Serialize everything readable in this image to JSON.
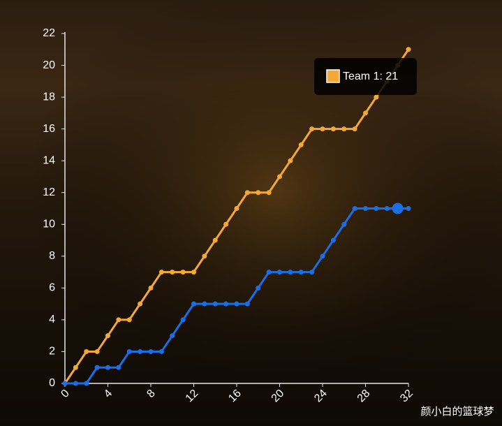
{
  "chart_data": {
    "type": "line",
    "x": [
      0,
      1,
      2,
      3,
      4,
      5,
      6,
      7,
      8,
      9,
      10,
      11,
      12,
      13,
      14,
      15,
      16,
      17,
      18,
      19,
      20,
      21,
      22,
      23,
      24,
      25,
      26,
      27,
      28,
      29,
      30,
      31,
      32
    ],
    "series": [
      {
        "color": "#f5a833",
        "values": [
          0,
          1,
          2,
          2,
          3,
          4,
          4,
          5,
          6,
          7,
          7,
          7,
          7,
          8,
          9,
          10,
          11,
          12,
          12,
          12,
          13,
          14,
          15,
          16,
          16,
          16,
          16,
          16,
          17,
          18,
          19,
          20,
          21
        ]
      },
      {
        "color": "#1a6ee8",
        "values": [
          0,
          0,
          0,
          1,
          1,
          1,
          2,
          2,
          2,
          2,
          3,
          4,
          5,
          5,
          5,
          5,
          5,
          5,
          6,
          7,
          7,
          7,
          7,
          7,
          8,
          9,
          10,
          11,
          11,
          11,
          11,
          11,
          11
        ]
      }
    ],
    "xlim": [
      0,
      32
    ],
    "xticks": [
      0,
      4,
      8,
      12,
      16,
      20,
      24,
      28,
      32
    ],
    "ylim": [
      0,
      22
    ],
    "yticks": [
      0,
      2,
      4,
      6,
      8,
      10,
      12,
      14,
      16,
      18,
      20,
      22
    ],
    "highlight": {
      "series": 1,
      "index": 31
    },
    "tooltip": {
      "text": "Team 1: 21",
      "series": 0,
      "index": 32
    }
  },
  "watermark": "颜小白的篮球梦"
}
